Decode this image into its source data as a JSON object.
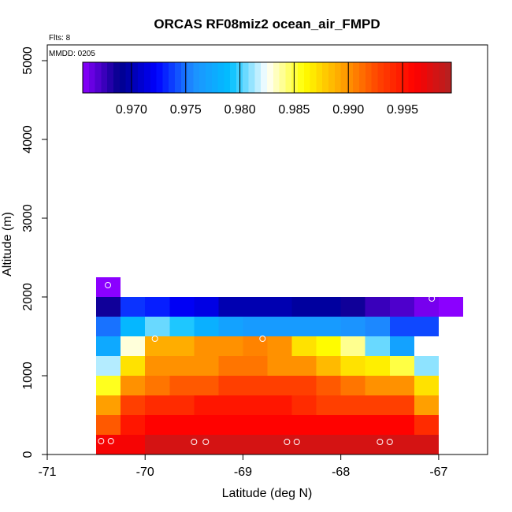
{
  "chart_data": {
    "type": "heatmap",
    "title": "ORCAS RF08miz2 ocean_air_FMPD",
    "flights_note": "Flts: 8",
    "mmdd_note": "MMDD: 0205",
    "xlabel": "Latitude (deg N)",
    "ylabel": "Altitude (m)",
    "xlim": [
      -71,
      -66.5
    ],
    "ylim": [
      0,
      5200
    ],
    "xticks": [
      -71,
      -70,
      -69,
      -68,
      -67
    ],
    "yticks": [
      0,
      1000,
      2000,
      3000,
      4000,
      5000
    ],
    "x_tick_labels": [
      "-71",
      "-70",
      "-69",
      "-68",
      "-67"
    ],
    "y_tick_labels": [
      "0",
      "1000",
      "2000",
      "3000",
      "4000",
      "5000"
    ],
    "cell_width_deg": 0.25,
    "cell_height_m": 250,
    "cell_x_starts": [
      -70.5,
      -70.25,
      -70.0,
      -69.75,
      -69.5,
      -69.25,
      -69.0,
      -68.75,
      -68.5,
      -68.25,
      -68.0,
      -67.75,
      -67.5,
      -67.25,
      -67.0
    ],
    "rows": [
      {
        "y_bottom": 0,
        "values": [
          0.9965,
          0.9965,
          0.998,
          0.998,
          0.998,
          0.998,
          0.998,
          0.998,
          0.998,
          0.998,
          0.998,
          0.998,
          0.998,
          0.998
        ]
      },
      {
        "y_bottom": 250,
        "values": [
          0.992,
          0.995,
          0.996,
          0.996,
          0.996,
          0.996,
          0.996,
          0.996,
          0.996,
          0.996,
          0.996,
          0.996,
          0.996,
          0.994
        ]
      },
      {
        "y_bottom": 500,
        "values": [
          0.9895,
          0.993,
          0.994,
          0.994,
          0.995,
          0.995,
          0.995,
          0.995,
          0.994,
          0.993,
          0.993,
          0.993,
          0.993,
          0.9895
        ]
      },
      {
        "y_bottom": 750,
        "values": [
          0.9855,
          0.99,
          0.991,
          0.992,
          0.992,
          0.993,
          0.993,
          0.993,
          0.993,
          0.992,
          0.991,
          0.99,
          0.99,
          0.987
        ]
      },
      {
        "y_bottom": 1000,
        "values": [
          0.9815,
          0.987,
          0.99,
          0.99,
          0.99,
          0.991,
          0.991,
          0.99,
          0.99,
          0.9885,
          0.987,
          0.9865,
          0.985,
          0.981
        ]
      },
      {
        "y_bottom": 1250,
        "values": [
          0.9775,
          0.983,
          0.989,
          0.989,
          0.99,
          0.99,
          0.9905,
          0.99,
          0.987,
          0.986,
          0.984,
          0.9805,
          0.977
        ]
      },
      {
        "y_bottom": 1500,
        "values": [
          0.975,
          0.9785,
          0.9805,
          0.9795,
          0.978,
          0.977,
          0.9765,
          0.9765,
          0.9765,
          0.9765,
          0.976,
          0.9755,
          0.974,
          0.974
        ]
      },
      {
        "y_bottom": 1750,
        "values": [
          0.9685,
          0.9735,
          0.973,
          0.972,
          0.9715,
          0.97,
          0.97,
          0.97,
          0.9695,
          0.9695,
          0.9685,
          0.9675,
          0.967,
          0.966
        ]
      },
      {
        "y_bottom": 1750,
        "x_start": -67.0,
        "values": [
          0.965
        ]
      },
      {
        "y_bottom": 2000,
        "values": [
          0.965
        ]
      }
    ],
    "colorbar": {
      "range": [
        0.9655,
        0.9995
      ],
      "tick_values": [
        0.97,
        0.975,
        0.98,
        0.985,
        0.99,
        0.995
      ],
      "tick_labels": [
        "0.970",
        "0.975",
        "0.980",
        "0.985",
        "0.990",
        "0.995"
      ],
      "colors": [
        "#8b00ff",
        "#00008b",
        "#0000ff",
        "#1e90ff",
        "#00bfff",
        "#ffffff",
        "#ffff00",
        "#ffa500",
        "#ff4500",
        "#ff0000",
        "#b22222"
      ]
    },
    "flight_markers": [
      {
        "x": -70.45,
        "y": 170
      },
      {
        "x": -70.35,
        "y": 170
      },
      {
        "x": -69.5,
        "y": 160
      },
      {
        "x": -69.38,
        "y": 160
      },
      {
        "x": -68.55,
        "y": 160
      },
      {
        "x": -68.45,
        "y": 160
      },
      {
        "x": -67.6,
        "y": 160
      },
      {
        "x": -67.5,
        "y": 160
      },
      {
        "x": -70.38,
        "y": 2150
      },
      {
        "x": -69.9,
        "y": 1470
      },
      {
        "x": -68.8,
        "y": 1470
      },
      {
        "x": -67.07,
        "y": 1980
      }
    ]
  }
}
